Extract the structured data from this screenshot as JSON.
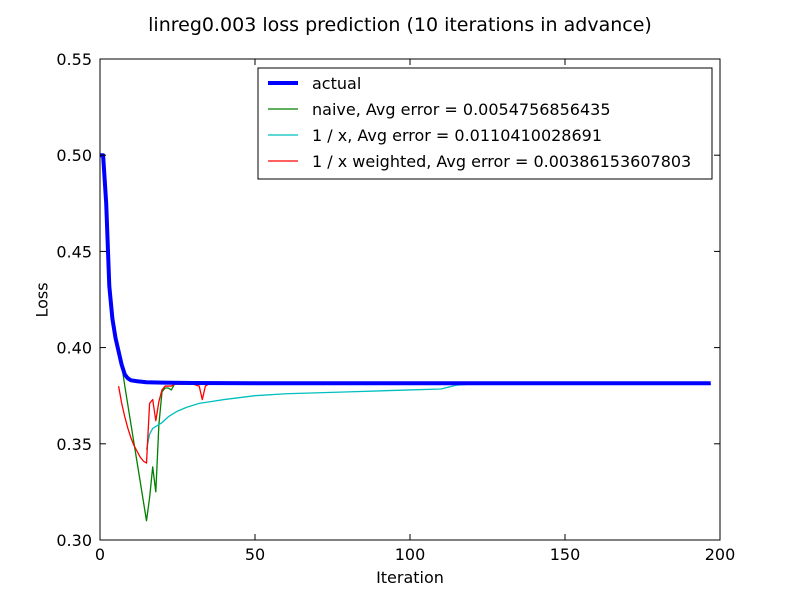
{
  "chart_data": {
    "type": "line",
    "title": "linreg0.003 loss prediction (10 iterations in advance)",
    "xlabel": "Iteration",
    "ylabel": "Loss",
    "xlim": [
      0,
      200
    ],
    "ylim": [
      0.3,
      0.55
    ],
    "x_ticks": [
      "0",
      "50",
      "100",
      "150",
      "200"
    ],
    "y_ticks": [
      "0.30",
      "0.35",
      "0.40",
      "0.45",
      "0.50",
      "0.55"
    ],
    "grid": false,
    "legend_position": "top-right",
    "series": [
      {
        "name": "actual",
        "color": "#0000ff",
        "x": [
          0,
          1,
          2,
          3,
          4,
          5,
          6,
          7,
          8,
          9,
          10,
          12,
          15,
          20,
          30,
          50,
          100,
          150,
          197
        ],
        "y": [
          0.5,
          0.5,
          0.475,
          0.432,
          0.415,
          0.405,
          0.398,
          0.391,
          0.386,
          0.384,
          0.383,
          0.3825,
          0.382,
          0.3818,
          0.3816,
          0.3815,
          0.3815,
          0.3815,
          0.3815
        ]
      },
      {
        "name": "naive, Avg error = 0.0054756856435",
        "color": "#008000",
        "x": [
          6,
          7,
          8,
          9,
          10,
          11,
          12,
          13,
          14,
          15,
          16,
          17,
          18,
          19,
          20,
          21,
          22,
          23,
          24,
          25,
          30,
          50,
          100,
          150,
          197
        ],
        "y": [
          0.398,
          0.391,
          0.38,
          0.37,
          0.36,
          0.35,
          0.34,
          0.33,
          0.32,
          0.31,
          0.322,
          0.338,
          0.325,
          0.36,
          0.377,
          0.379,
          0.379,
          0.378,
          0.381,
          0.381,
          0.381,
          0.381,
          0.381,
          0.381,
          0.381
        ]
      },
      {
        "name": "1 / x, Avg error = 0.0110410028691",
        "color": "#00bfbf",
        "x": [
          15,
          16,
          17,
          18,
          19,
          20,
          22,
          25,
          28,
          32,
          36,
          40,
          50,
          60,
          80,
          100,
          110,
          115,
          120,
          150,
          197
        ],
        "y": [
          0.347,
          0.355,
          0.358,
          0.359,
          0.36,
          0.361,
          0.364,
          0.367,
          0.369,
          0.371,
          0.372,
          0.373,
          0.375,
          0.376,
          0.377,
          0.378,
          0.3785,
          0.3805,
          0.381,
          0.381,
          0.381
        ]
      },
      {
        "name": "1 / x weighted, Avg error = 0.00386153607803",
        "color": "#ff0000",
        "x": [
          6,
          7,
          8,
          9,
          10,
          11,
          12,
          13,
          14,
          15,
          16,
          17,
          18,
          19,
          20,
          21,
          22,
          23,
          24,
          25,
          26,
          28,
          30,
          32,
          33,
          34,
          35,
          50,
          100,
          150,
          197
        ],
        "y": [
          0.38,
          0.371,
          0.364,
          0.358,
          0.353,
          0.349,
          0.346,
          0.343,
          0.341,
          0.34,
          0.371,
          0.373,
          0.362,
          0.372,
          0.378,
          0.38,
          0.38,
          0.38,
          0.381,
          0.381,
          0.381,
          0.381,
          0.381,
          0.38,
          0.373,
          0.38,
          0.381,
          0.381,
          0.381,
          0.381,
          0.381
        ]
      }
    ]
  }
}
